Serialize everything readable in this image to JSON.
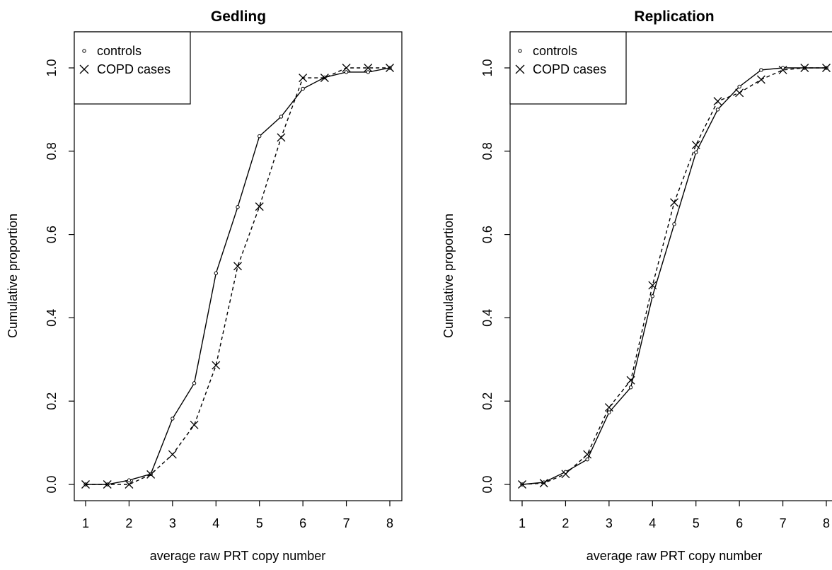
{
  "chart_data": [
    {
      "type": "line",
      "title": "Gedling",
      "xlabel": "average raw PRT copy number",
      "ylabel": "Cumulative proportion",
      "xlim": [
        1,
        8
      ],
      "ylim": [
        0,
        1
      ],
      "xticks": [
        "1",
        "2",
        "3",
        "4",
        "5",
        "6",
        "7",
        "8"
      ],
      "yticks": [
        "0.0",
        "0.2",
        "0.4",
        "0.6",
        "0.8",
        "1.0"
      ],
      "grid": false,
      "legend": "top-left",
      "x": [
        1,
        1.5,
        2,
        2.5,
        3,
        3.5,
        4,
        4.5,
        5,
        5.5,
        6,
        6.5,
        7,
        7.5,
        8
      ],
      "series": [
        {
          "name": "controls",
          "marker": "circle",
          "line": "solid",
          "values": [
            0,
            0,
            0.01,
            0.025,
            0.158,
            0.243,
            0.507,
            0.666,
            0.836,
            0.883,
            0.95,
            0.977,
            0.99,
            0.99,
            1.0
          ]
        },
        {
          "name": "COPD cases",
          "marker": "cross",
          "line": "dashed",
          "values": [
            0,
            0,
            0,
            0.024,
            0.072,
            0.143,
            0.286,
            0.524,
            0.667,
            0.833,
            0.976,
            0.976,
            1.0,
            1.0,
            1.0
          ]
        }
      ]
    },
    {
      "type": "line",
      "title": "Replication",
      "xlabel": "average raw PRT copy number",
      "ylabel": "Cumulative proportion",
      "xlim": [
        1,
        8
      ],
      "ylim": [
        0,
        1
      ],
      "xticks": [
        "1",
        "2",
        "3",
        "4",
        "5",
        "6",
        "7",
        "8"
      ],
      "yticks": [
        "0.0",
        "0.2",
        "0.4",
        "0.6",
        "0.8",
        "1.0"
      ],
      "grid": false,
      "legend": "top-left",
      "x": [
        1,
        1.5,
        2,
        2.5,
        3,
        3.5,
        4,
        4.5,
        5,
        5.5,
        6,
        6.5,
        7,
        7.5,
        8
      ],
      "series": [
        {
          "name": "controls",
          "marker": "circle",
          "line": "solid",
          "values": [
            0,
            0.005,
            0.03,
            0.06,
            0.173,
            0.233,
            0.452,
            0.625,
            0.797,
            0.9,
            0.955,
            0.995,
            1.0,
            1.0,
            1.0
          ]
        },
        {
          "name": "COPD cases",
          "marker": "cross",
          "line": "dashed",
          "values": [
            0,
            0.003,
            0.025,
            0.072,
            0.185,
            0.25,
            0.478,
            0.677,
            0.815,
            0.92,
            0.94,
            0.972,
            0.995,
            1.0,
            1.0
          ]
        }
      ]
    }
  ]
}
